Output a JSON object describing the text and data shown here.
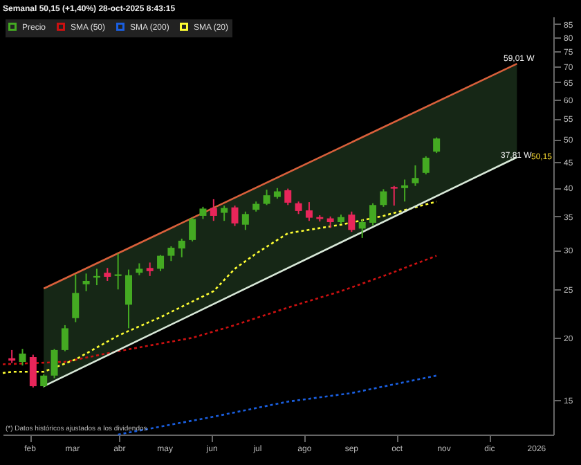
{
  "chart_data": {
    "type": "candlestick",
    "title": "Semanal 50,15 (+1,40%) 28-oct-2025 8:43:15",
    "x": [
      "2025-01-20",
      "2025-01-27",
      "2025-02-03",
      "2025-02-10",
      "2025-02-17",
      "2025-02-24",
      "2025-03-03",
      "2025-03-10",
      "2025-03-17",
      "2025-03-24",
      "2025-03-31",
      "2025-04-07",
      "2025-04-14",
      "2025-04-21",
      "2025-04-28",
      "2025-05-05",
      "2025-05-12",
      "2025-05-19",
      "2025-05-26",
      "2025-06-02",
      "2025-06-09",
      "2025-06-16",
      "2025-06-23",
      "2025-06-30",
      "2025-07-07",
      "2025-07-14",
      "2025-07-21",
      "2025-07-28",
      "2025-08-04",
      "2025-08-11",
      "2025-08-18",
      "2025-08-25",
      "2025-09-01",
      "2025-09-08",
      "2025-09-15",
      "2025-09-22",
      "2025-09-29",
      "2025-10-06",
      "2025-10-13",
      "2025-10-20",
      "2025-10-27"
    ],
    "series": [
      {
        "name": "Precio",
        "color": "#44aa22",
        "colors": [
          "#e8265a",
          "#44aa22",
          "#e8265a",
          "#44aa22",
          "#44aa22",
          "#44aa22",
          "#44aa22",
          "#44aa22",
          "#44aa22",
          "#e8265a",
          "#44aa22",
          "#44aa22",
          "#44aa22",
          "#e8265a",
          "#44aa22",
          "#44aa22",
          "#44aa22",
          "#44aa22",
          "#44aa22",
          "#e8265a",
          "#44aa22",
          "#e8265a",
          "#44aa22",
          "#44aa22",
          "#44aa22",
          "#44aa22",
          "#e8265a",
          "#e8265a",
          "#e8265a",
          "#e8265a",
          "#e8265a",
          "#44aa22",
          "#e8265a",
          "#44aa22",
          "#44aa22",
          "#44aa22",
          "#e8265a",
          "#44aa22",
          "#44aa22",
          "#44aa22",
          "#44aa22"
        ],
        "ohlc": [
          [
            18.2,
            18.9,
            17.8,
            18.0
          ],
          [
            17.9,
            19.0,
            17.6,
            18.6
          ],
          [
            18.3,
            18.5,
            15.9,
            16.0
          ],
          [
            16.0,
            16.9,
            15.9,
            16.8
          ],
          [
            16.8,
            19.0,
            16.6,
            18.9
          ],
          [
            18.9,
            21.2,
            18.8,
            20.9
          ],
          [
            21.9,
            26.8,
            21.5,
            24.6
          ],
          [
            25.6,
            26.9,
            24.8,
            26.0
          ],
          [
            26.4,
            27.5,
            25.5,
            26.6
          ],
          [
            27.0,
            27.6,
            26.0,
            26.5
          ],
          [
            26.6,
            29.5,
            25.0,
            26.8
          ],
          [
            23.3,
            27.4,
            20.9,
            26.7
          ],
          [
            27.0,
            28.2,
            26.7,
            27.5
          ],
          [
            27.6,
            28.3,
            26.6,
            27.2
          ],
          [
            27.5,
            29.3,
            27.2,
            29.2
          ],
          [
            29.2,
            30.5,
            28.5,
            30.3
          ],
          [
            30.2,
            31.6,
            29.0,
            31.3
          ],
          [
            31.4,
            34.8,
            31.2,
            34.6
          ],
          [
            35.1,
            36.6,
            34.6,
            36.3
          ],
          [
            36.4,
            37.9,
            34.3,
            35.1
          ],
          [
            35.6,
            36.8,
            34.3,
            36.4
          ],
          [
            36.5,
            36.8,
            33.5,
            33.9
          ],
          [
            33.7,
            35.8,
            32.9,
            35.4
          ],
          [
            36.1,
            37.5,
            35.8,
            37.1
          ],
          [
            37.1,
            39.6,
            36.9,
            38.6
          ],
          [
            38.3,
            39.9,
            38.0,
            39.3
          ],
          [
            39.5,
            39.8,
            36.9,
            37.3
          ],
          [
            37.2,
            37.5,
            35.4,
            35.9
          ],
          [
            36.0,
            37.4,
            34.3,
            34.8
          ],
          [
            34.9,
            35.2,
            34.2,
            34.6
          ],
          [
            34.7,
            35.0,
            33.2,
            34.1
          ],
          [
            34.1,
            35.3,
            33.8,
            34.9
          ],
          [
            35.3,
            35.8,
            32.6,
            32.9
          ],
          [
            33.1,
            34.5,
            31.7,
            34.1
          ],
          [
            34.0,
            37.2,
            33.6,
            36.9
          ],
          [
            36.9,
            39.7,
            36.6,
            39.3
          ],
          [
            40.1,
            40.3,
            36.8,
            39.8
          ],
          [
            39.9,
            41.5,
            37.5,
            40.4
          ],
          [
            40.8,
            44.3,
            40.3,
            41.8
          ],
          [
            42.8,
            46.2,
            42.5,
            45.9
          ],
          [
            47.2,
            50.4,
            46.9,
            50.15
          ]
        ]
      },
      {
        "name": "SMA (50)",
        "type": "line",
        "line_style": "dotted",
        "color": "#cc1111",
        "x": [
          "2025-01-14",
          "2025-02-24",
          "2025-03-31",
          "2025-05-19",
          "2025-06-16",
          "2025-07-21",
          "2025-08-25",
          "2025-09-22",
          "2025-10-27"
        ],
        "values": [
          17.7,
          17.9,
          18.8,
          20.0,
          21.2,
          23.0,
          24.8,
          26.6,
          29.2
        ]
      },
      {
        "name": "SMA (200)",
        "type": "line",
        "line_style": "dotted",
        "color": "#1a5fe0",
        "x": [
          "2025-03-31",
          "2025-06-02",
          "2025-07-21",
          "2025-09-01",
          "2025-10-27"
        ],
        "values": [
          12.8,
          13.9,
          14.9,
          15.5,
          16.8
        ]
      },
      {
        "name": "SMA (20)",
        "type": "line",
        "line_style": "dotted",
        "color": "#ffff33",
        "x": [
          "2025-01-14",
          "2025-01-20",
          "2025-02-10",
          "2025-03-03",
          "2025-03-31",
          "2025-04-28",
          "2025-06-02",
          "2025-06-16",
          "2025-06-30",
          "2025-07-21",
          "2025-08-25",
          "2025-09-22",
          "2025-10-27"
        ],
        "values": [
          17.0,
          17.1,
          17.1,
          18.1,
          20.2,
          22.0,
          24.8,
          27.5,
          29.5,
          32.4,
          33.7,
          35.1,
          37.5
        ]
      },
      {
        "type": "line",
        "line_style": "solid",
        "color": "#d9603b",
        "x": [
          "2025-02-10",
          "2025-12-19"
        ],
        "values": [
          25.1,
          70.8
        ],
        "lower": [
          16.0,
          46.0
        ],
        "upper": [
          25.1,
          70.8
        ]
      },
      {
        "type": "line",
        "line_style": "solid",
        "color": "#d8e8d8",
        "x": [
          "2025-02-10",
          "2025-12-19"
        ],
        "values": [
          16.0,
          46.0
        ]
      }
    ],
    "xlim": [
      "2025-01-14",
      "2026-01-12"
    ],
    "xticks": [
      {
        "value": "2025-02-01",
        "label": "feb"
      },
      {
        "value": "2025-03-01",
        "label": "mar"
      },
      {
        "value": "2025-04-01",
        "label": "abr"
      },
      {
        "value": "2025-05-01",
        "label": "may"
      },
      {
        "value": "2025-06-01",
        "label": "jun"
      },
      {
        "value": "2025-07-01",
        "label": "jul"
      },
      {
        "value": "2025-08-01",
        "label": "ago"
      },
      {
        "value": "2025-09-01",
        "label": "sep"
      },
      {
        "value": "2025-10-01",
        "label": "oct"
      },
      {
        "value": "2025-11-01",
        "label": "nov"
      },
      {
        "value": "2025-12-01",
        "label": "dic"
      },
      {
        "value": "2026-01-01",
        "label": "2026"
      }
    ],
    "ylim": [
      12.8,
      88
    ],
    "yticks": [
      15,
      20,
      25,
      30,
      35,
      40,
      45,
      50,
      55,
      60,
      65,
      70,
      75,
      80,
      85
    ],
    "log": true,
    "grid": false,
    "legend": "top left",
    "annotations": [
      "59,01 W",
      "37,81 W",
      "50,15",
      "(*) Datos históricos ajustados a los dividendos"
    ]
  }
}
